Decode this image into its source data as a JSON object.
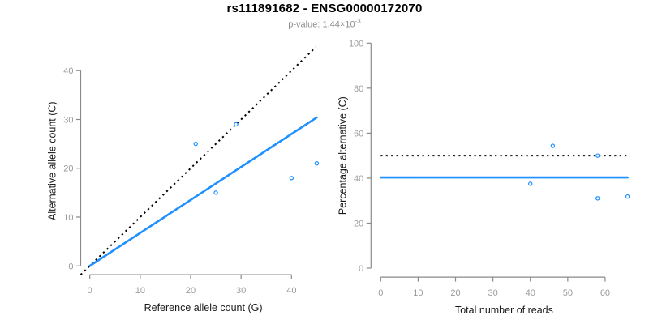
{
  "header": {
    "title": "rs111891682 - ENSG00000172070",
    "subtitle": {
      "prefix": "p-value: ",
      "mantissa": "1.44",
      "times": "×10",
      "exponent": "-3"
    }
  },
  "colors": {
    "point_blue": "#1E90FF",
    "line_blue": "#1E90FF",
    "dotted_black": "#000000",
    "axis_gray": "#8a8a8a",
    "tick_label_gray": "#9b9b9b",
    "label_black": "#1a1a1a"
  },
  "chart_data": [
    {
      "type": "scatter",
      "name": "allele-counts-scatter",
      "title": "",
      "xlabel": "Reference allele count (G)",
      "ylabel": "Alternative allele count (C)",
      "xlim": [
        -1.8,
        46.8
      ],
      "ylim": [
        -1.8,
        44.8
      ],
      "xticks": [
        0,
        10,
        20,
        30,
        40
      ],
      "yticks": [
        0,
        10,
        20,
        30,
        40
      ],
      "grid": false,
      "legend": "none",
      "points": [
        {
          "x": 21,
          "y": 25
        },
        {
          "x": 25,
          "y": 15
        },
        {
          "x": 29,
          "y": 29
        },
        {
          "x": 40,
          "y": 18
        },
        {
          "x": 45,
          "y": 21
        }
      ],
      "lines": [
        {
          "name": "identity-line",
          "style": "dotted",
          "color": "#000000",
          "width": 2,
          "x1": -1.8,
          "y1": -1.8,
          "x2": 44.8,
          "y2": 44.8
        },
        {
          "name": "fitted-line",
          "style": "solid",
          "color": "#1E90FF",
          "width": 2.6,
          "x1": 0,
          "y1": 0,
          "x2": 45,
          "y2": 30.4
        }
      ]
    },
    {
      "type": "scatter",
      "name": "percentage-scatter",
      "title": "",
      "xlabel": "Total number of reads",
      "ylabel": "Percentage alternative (C)",
      "xlim": [
        -2.6,
        68.6
      ],
      "ylim": [
        -4,
        104
      ],
      "xticks": [
        0,
        10,
        20,
        30,
        40,
        50,
        60
      ],
      "yticks": [
        0,
        20,
        40,
        60,
        80,
        100
      ],
      "grid": false,
      "legend": "none",
      "points": [
        {
          "x": 40,
          "y": 37.5
        },
        {
          "x": 46,
          "y": 54.35
        },
        {
          "x": 58,
          "y": 50
        },
        {
          "x": 58,
          "y": 31.03
        },
        {
          "x": 66,
          "y": 31.82
        }
      ],
      "lines": [
        {
          "name": "expected-50pct-line",
          "style": "dotted",
          "color": "#000000",
          "width": 2,
          "x1": 0,
          "y1": 50,
          "x2": 66,
          "y2": 50
        },
        {
          "name": "mean-percentage-line",
          "style": "solid",
          "color": "#1E90FF",
          "width": 2.6,
          "x1": 0,
          "y1": 40.3,
          "x2": 66,
          "y2": 40.3
        }
      ]
    }
  ]
}
